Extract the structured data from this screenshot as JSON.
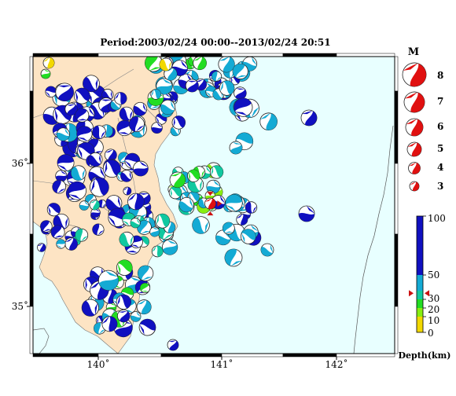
{
  "map": {
    "title": "Period:2003/02/24 00:00--2013/02/24 20:51",
    "lon_range": [
      139.5,
      142.5
    ],
    "lat_range": [
      34.75,
      36.75
    ],
    "lon_ticks": [
      "140˚",
      "141˚",
      "142˚"
    ],
    "lat_ticks": [
      "36˚",
      "35˚"
    ],
    "land_color": "#fde4c4",
    "sea_color": "#e8ffff"
  },
  "magnitude_legend": {
    "title": "M",
    "entries": [
      "8",
      "7",
      "6",
      "5",
      "4",
      "3"
    ]
  },
  "depth_scale": {
    "title": "Depth(km)",
    "ticks": [
      "100",
      "50",
      "30",
      "20",
      "10",
      "0"
    ],
    "current_depth": 35
  },
  "target_event": {
    "lon": 140.97,
    "lat": 35.76
  }
}
